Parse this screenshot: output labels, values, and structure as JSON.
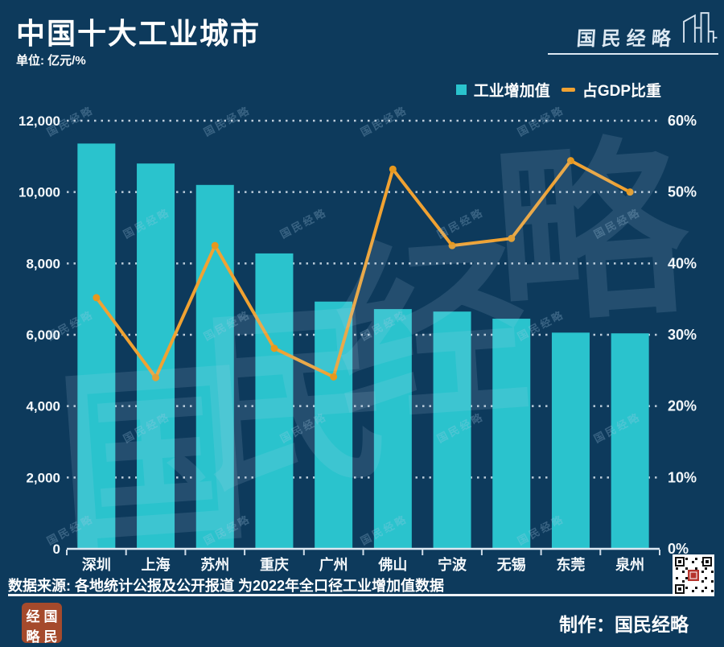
{
  "header": {
    "title": "中国十大工业城市",
    "unit": "单位: 亿元/%"
  },
  "brand": {
    "logo_text": "国民经略"
  },
  "legend": {
    "items": [
      {
        "label": "工业增加值",
        "color": "#2ac3cd",
        "marker": "square"
      },
      {
        "label": "占GDP比重",
        "color": "#f0a232",
        "marker": "dash"
      }
    ]
  },
  "chart_data": {
    "type": "bar",
    "subtype": "combo bar+line, dual axis",
    "title": "中国十大工业城市",
    "categories": [
      "深圳",
      "上海",
      "苏州",
      "重庆",
      "广州",
      "佛山",
      "宁波",
      "无锡",
      "东莞",
      "泉州"
    ],
    "series": [
      {
        "name": "工业增加值",
        "type": "bar",
        "axis": "left",
        "unit": "亿元",
        "values": [
          11360,
          10800,
          10200,
          8280,
          6930,
          6720,
          6650,
          6450,
          6060,
          6040
        ]
      },
      {
        "name": "占GDP比重",
        "type": "line",
        "axis": "right",
        "unit": "%",
        "values": [
          35.2,
          24.0,
          42.5,
          28.1,
          24.1,
          53.2,
          42.5,
          43.5,
          54.4,
          50.0
        ]
      }
    ],
    "left_axis": {
      "min": 0,
      "max": 12000,
      "step": 2000,
      "tick_labels": [
        "0",
        "2,000",
        "4,000",
        "6,000",
        "8,000",
        "10,000",
        "12,000"
      ]
    },
    "right_axis": {
      "min": 0,
      "max": 60,
      "step": 10,
      "tick_labels": [
        "0%",
        "10%",
        "20%",
        "30%",
        "40%",
        "50%",
        "60%"
      ]
    },
    "grid": "dotted horizontal",
    "legend_position": "top-right"
  },
  "watermark": {
    "text": "国民经略",
    "big_chars": [
      "国",
      "民",
      "经",
      "略"
    ]
  },
  "footer": {
    "source": "数据来源: 各地统计公报及公开报道 为2022年全口径工业增加值数据",
    "credit": "制作：国民经略",
    "seal_chars": [
      "经",
      "国",
      "略",
      "民"
    ]
  },
  "colors": {
    "background": "#0d3a5c",
    "bar": "#2ac3cd",
    "line": "#f0a232",
    "marker": "#e6981e",
    "grid": "#cfdce8",
    "text": "#ffffff",
    "seal": "#a54a2c"
  }
}
